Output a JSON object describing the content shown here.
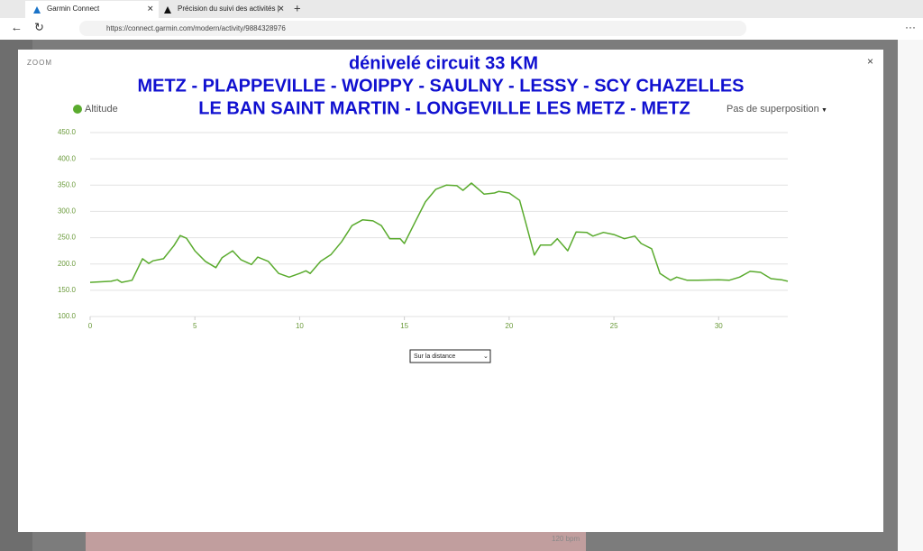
{
  "browser": {
    "tabs": [
      "Garmin Connect",
      "Précision du suivi des activités |"
    ],
    "url": "https://connect.garmin.com/modern/activity/9884328976"
  },
  "modal": {
    "zoom_label": "ZOOM",
    "close": "×",
    "overlay_option": "Pas de superposition",
    "axis_select": "Sur la distance"
  },
  "background_label": "120 bpm",
  "chart_data": {
    "type": "line",
    "title": "dénivelé circuit 33 KM",
    "annotations": [
      "METZ - PLAPPEVILLE - WOIPPY - SAULNY - LESSY - SCY CHAZELLES",
      "LE BAN SAINT MARTIN - LONGEVILLE LES METZ - METZ"
    ],
    "x": [
      0,
      1,
      1.3,
      1.5,
      2,
      2.5,
      2.8,
      3,
      3.5,
      4,
      4.3,
      4.6,
      5,
      5.5,
      6,
      6.3,
      6.8,
      7.2,
      7.7,
      8,
      8.5,
      9,
      9.5,
      10,
      10.3,
      10.5,
      11,
      11.5,
      12,
      12.5,
      13,
      13.5,
      13.9,
      14.3,
      14.8,
      15,
      15.5,
      16,
      16.5,
      17,
      17.5,
      17.8,
      18.2,
      18.8,
      19.3,
      19.5,
      20,
      20.5,
      20.8,
      21.2,
      21.5,
      22,
      22.3,
      22.8,
      23.2,
      23.7,
      24,
      24.5,
      25,
      25.5,
      26,
      26.3,
      26.8,
      27.2,
      27.7,
      28,
      28.5,
      29,
      30,
      30.5,
      31,
      31.5,
      32,
      32.5,
      33,
      33.3
    ],
    "series": [
      {
        "name": "Altitude",
        "color": "#5aab2e",
        "values": [
          165,
          167,
          170,
          165,
          169,
          210,
          201,
          206,
          210,
          235,
          254,
          249,
          225,
          205,
          193,
          212,
          225,
          208,
          199,
          213,
          205,
          182,
          175,
          182,
          187,
          182,
          205,
          218,
          242,
          273,
          284,
          282,
          273,
          248,
          248,
          239,
          279,
          318,
          342,
          350,
          349,
          340,
          354,
          333,
          335,
          338,
          335,
          321,
          277,
          217,
          236,
          236,
          248,
          225,
          261,
          260,
          253,
          260,
          256,
          248,
          253,
          239,
          229,
          182,
          169,
          175,
          169,
          169,
          170,
          169,
          175,
          186,
          184,
          172,
          170,
          167
        ]
      }
    ],
    "xlim": [
      0,
      33.3
    ],
    "xticks": [
      0,
      5,
      10,
      15,
      20,
      25,
      30
    ],
    "ylim": [
      100,
      450
    ],
    "yticks": [
      {
        "value": 100,
        "label": "100.0"
      },
      {
        "value": 150,
        "label": "150.0"
      },
      {
        "value": 200,
        "label": "200.0"
      },
      {
        "value": 250,
        "label": "250.0"
      },
      {
        "value": 300,
        "label": "300.0"
      },
      {
        "value": 350,
        "label": "350.0"
      },
      {
        "value": 400,
        "label": "400.0"
      },
      {
        "value": 450,
        "label": "450.0"
      }
    ],
    "grid": true,
    "legend": "top-left"
  }
}
